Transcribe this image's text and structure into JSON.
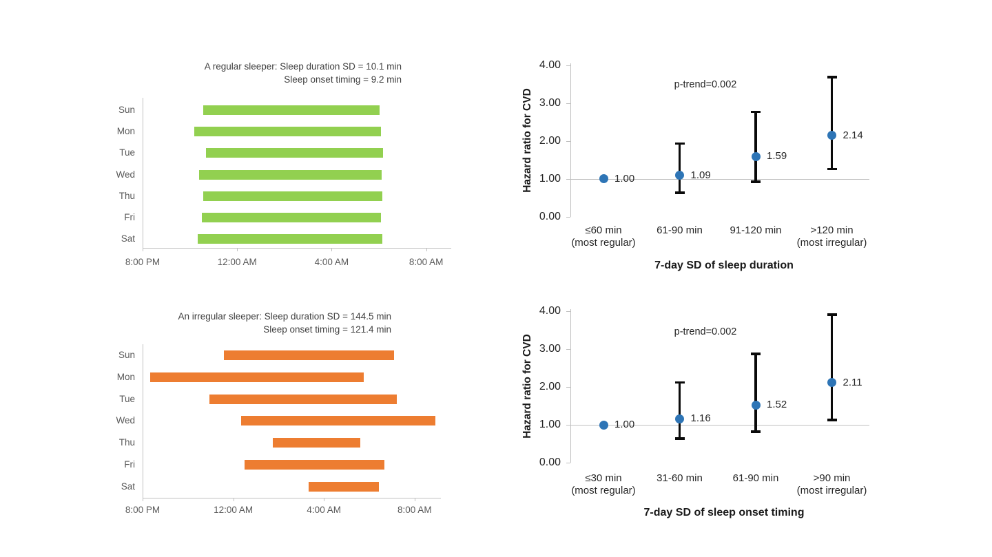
{
  "figure": {
    "description_colors": {
      "regular_bar_green": "#92D050",
      "irregular_bar_orange": "#ED7D31",
      "marker_blue": "#2E75B6",
      "error_bar_black": "#0a0a0a",
      "axis_gray": "#BFBFBF"
    }
  },
  "chart_data": [
    {
      "id": "sleep-pattern-regular",
      "type": "bar",
      "subtype": "horizontal-range-bars",
      "title_lines": [
        "A regular sleeper: Sleep duration SD = 10.1 min",
        "Sleep onset timing = 9.2 min"
      ],
      "bar_color": "#92D050",
      "categories": [
        "Sun",
        "Mon",
        "Tue",
        "Wed",
        "Thu",
        "Fri",
        "Sat"
      ],
      "x_axis": {
        "unit": "hours after 8:00 PM",
        "range": [
          0,
          13
        ],
        "ticks": [
          {
            "label": "8:00 PM",
            "hour": 0
          },
          {
            "label": "12:00 AM",
            "hour": 4
          },
          {
            "label": "4:00 AM",
            "hour": 8
          },
          {
            "label": "8:00 AM",
            "hour": 12
          }
        ]
      },
      "bars": [
        {
          "day": "Sun",
          "start": 2.56,
          "end": 10.02
        },
        {
          "day": "Mon",
          "start": 2.18,
          "end": 10.08
        },
        {
          "day": "Tue",
          "start": 2.68,
          "end": 10.17
        },
        {
          "day": "Wed",
          "start": 2.39,
          "end": 10.11
        },
        {
          "day": "Thu",
          "start": 2.56,
          "end": 10.14
        },
        {
          "day": "Fri",
          "start": 2.5,
          "end": 10.08
        },
        {
          "day": "Sat",
          "start": 2.33,
          "end": 10.14
        }
      ]
    },
    {
      "id": "hr-sleep-duration",
      "type": "scatter",
      "subtype": "forest-error-bars",
      "ylabel": "Hazard ratio for CVD",
      "xlabel": "7-day SD of sleep duration",
      "annotation": "p-trend=0.002",
      "reference_line": 1.0,
      "ylim": [
        0,
        4
      ],
      "grid": false,
      "marker_color": "#2E75B6",
      "yticks": [
        {
          "value": 0,
          "label": "0.00"
        },
        {
          "value": 1,
          "label": "1.00"
        },
        {
          "value": 2,
          "label": "2.00"
        },
        {
          "value": 3,
          "label": "3.00"
        },
        {
          "value": 4,
          "label": "4.00"
        }
      ],
      "categories": [
        {
          "label": "≤60 min",
          "sublabel": "(most regular)"
        },
        {
          "label": "61-90 min",
          "sublabel": ""
        },
        {
          "label": "91-120 min",
          "sublabel": ""
        },
        {
          "label": ">120 min",
          "sublabel": "(most irregular)"
        }
      ],
      "points": [
        {
          "value": 1.0,
          "label": "1.00",
          "ci_low": null,
          "ci_high": null
        },
        {
          "value": 1.09,
          "label": "1.09",
          "ci_low": 0.62,
          "ci_high": 1.93
        },
        {
          "value": 1.59,
          "label": "1.59",
          "ci_low": 0.91,
          "ci_high": 2.77
        },
        {
          "value": 2.14,
          "label": "2.14",
          "ci_low": 1.25,
          "ci_high": 3.69
        }
      ]
    },
    {
      "id": "sleep-pattern-irregular",
      "type": "bar",
      "subtype": "horizontal-range-bars",
      "title_lines": [
        "An irregular sleeper: Sleep duration SD = 144.5 min",
        "Sleep onset timing = 121.4 min"
      ],
      "bar_color": "#ED7D31",
      "categories": [
        "Sun",
        "Mon",
        "Tue",
        "Wed",
        "Thu",
        "Fri",
        "Sat"
      ],
      "x_axis": {
        "unit": "hours after 8:00 PM",
        "range": [
          0,
          13
        ],
        "ticks": [
          {
            "label": "8:00 PM",
            "hour": 0
          },
          {
            "label": "12:00 AM",
            "hour": 4
          },
          {
            "label": "4:00 AM",
            "hour": 8
          },
          {
            "label": "8:00 AM",
            "hour": 12
          }
        ]
      },
      "bars": [
        {
          "day": "Sun",
          "start": 3.59,
          "end": 11.09
        },
        {
          "day": "Mon",
          "start": 0.33,
          "end": 9.76
        },
        {
          "day": "Tue",
          "start": 2.95,
          "end": 11.22
        },
        {
          "day": "Wed",
          "start": 4.35,
          "end": 12.92
        },
        {
          "day": "Thu",
          "start": 5.74,
          "end": 9.6
        },
        {
          "day": "Fri",
          "start": 4.5,
          "end": 10.67
        },
        {
          "day": "Sat",
          "start": 7.33,
          "end": 10.43
        }
      ]
    },
    {
      "id": "hr-sleep-onset",
      "type": "scatter",
      "subtype": "forest-error-bars",
      "ylabel": "Hazard ratio for CVD",
      "xlabel": "7-day SD of sleep onset timing",
      "annotation": "p-trend=0.002",
      "reference_line": 1.0,
      "ylim": [
        0,
        4
      ],
      "grid": false,
      "marker_color": "#2E75B6",
      "yticks": [
        {
          "value": 0,
          "label": "0.00"
        },
        {
          "value": 1,
          "label": "1.00"
        },
        {
          "value": 2,
          "label": "2.00"
        },
        {
          "value": 3,
          "label": "3.00"
        },
        {
          "value": 4,
          "label": "4.00"
        }
      ],
      "categories": [
        {
          "label": "≤30 min",
          "sublabel": "(most regular)"
        },
        {
          "label": "31-60 min",
          "sublabel": ""
        },
        {
          "label": "61-90 min",
          "sublabel": ""
        },
        {
          "label": ">90 min",
          "sublabel": "(most irregular)"
        }
      ],
      "points": [
        {
          "value": 1.0,
          "label": "1.00",
          "ci_low": null,
          "ci_high": null
        },
        {
          "value": 1.16,
          "label": "1.16",
          "ci_low": 0.63,
          "ci_high": 2.12
        },
        {
          "value": 1.52,
          "label": "1.52",
          "ci_low": 0.81,
          "ci_high": 2.88
        },
        {
          "value": 2.11,
          "label": "2.11",
          "ci_low": 1.12,
          "ci_high": 3.91
        }
      ]
    }
  ]
}
